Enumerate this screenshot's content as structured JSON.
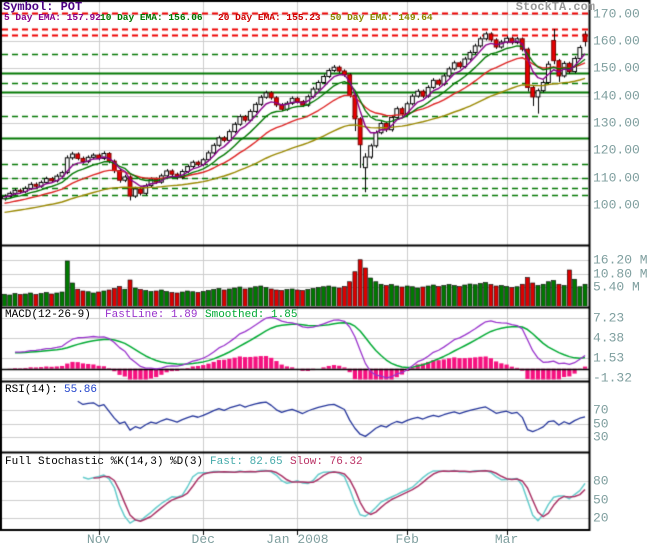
{
  "header": {
    "symbol_label": "Symbol: POT",
    "logo": "StockTA.com"
  },
  "legend": {
    "ema5": "5 Day EMA: 157.92",
    "ema10": "10 Day EMA: 156.06",
    "ema20": "20 Day EMA: 155.23",
    "ema50": "50 Day EMA: 149.64"
  },
  "panels": {
    "macd": {
      "title": "MACD(12-26-9)",
      "fast_label": "FastLine: 1.89",
      "smoothed_label": "Smoothed: 1.85"
    },
    "rsi": {
      "title": "RSI(14):",
      "value": "55.86"
    },
    "stochastic": {
      "title": "Full Stochastic %K(14,3) %D(3)",
      "fast_label": "Fast: 82.65",
      "slow_label": "Slow: 76.32"
    }
  },
  "axes": {
    "price_ticks": [
      {
        "label": "170.00",
        "value": 170
      },
      {
        "label": "160.00",
        "value": 160
      },
      {
        "label": "150.00",
        "value": 150
      },
      {
        "label": "140.00",
        "value": 140
      },
      {
        "label": "130.00",
        "value": 130
      },
      {
        "label": "120.00",
        "value": 120
      },
      {
        "label": "110.00",
        "value": 110
      },
      {
        "label": "100.00",
        "value": 100
      }
    ],
    "volume_ticks": [
      {
        "label": "16.20 M",
        "value": 16.2
      },
      {
        "label": "10.80 M",
        "value": 10.8
      },
      {
        "label": "5.40 M",
        "value": 5.4
      }
    ],
    "macd_ticks": [
      {
        "label": "7.23",
        "value": 7.23
      },
      {
        "label": "4.38",
        "value": 4.38
      },
      {
        "label": "1.53",
        "value": 1.53
      },
      {
        "label": "-1.32",
        "value": -1.32
      }
    ],
    "rsi_ticks": [
      {
        "label": "70",
        "value": 70
      },
      {
        "label": "50",
        "value": 50
      },
      {
        "label": "30",
        "value": 30
      }
    ],
    "stoch_ticks": [
      {
        "label": "80",
        "value": 80
      },
      {
        "label": "50",
        "value": 50
      },
      {
        "label": "20",
        "value": 20
      }
    ],
    "months": [
      {
        "label": "Nov",
        "day_index": 18
      },
      {
        "label": "Dec",
        "day_index": 38
      },
      {
        "label": "Jan 2008",
        "day_index": 56
      },
      {
        "label": "Feb",
        "day_index": 77
      },
      {
        "label": "Mar",
        "day_index": 96
      }
    ]
  },
  "colors": {
    "candle_up": "#ffffff",
    "candle_down": "#e80000",
    "candle_down_stroke": "#770000",
    "candle_outline": "#000000",
    "volume_up": "#007a00",
    "volume_down": "#dd0000",
    "ema5": "#880088",
    "ema10": "#007700",
    "ema20": "#dd2222",
    "ema50": "#998800",
    "sr_red_dashed": "#ee0000",
    "sr_green": "#007700",
    "macd_fast": "#9933cc",
    "macd_smoothed": "#00aa33",
    "macd_histogram": "#f5117f",
    "rsi_line": "#223399",
    "stoch_fast": "#66cccc",
    "stoch_slow": "#aa3366",
    "grid": "#cccccc",
    "frame": "#000000",
    "axis_text": "#7f9f9f",
    "symbol_text": "#4b0082",
    "logo_text": "#999999"
  },
  "chart_data": {
    "type": "candlestick",
    "symbol": "POT",
    "price_ylim": [
      85,
      175
    ],
    "x_months": [
      "Nov",
      "Dec",
      "Jan 2008",
      "Feb",
      "Mar"
    ],
    "indicators": {
      "ema_periods": [
        5,
        10,
        20,
        50
      ],
      "ema_values": {
        "ema5": 157.92,
        "ema10": 156.06,
        "ema20": 155.23,
        "ema50": 149.64
      },
      "macd": {
        "params": [
          12,
          26,
          9
        ],
        "fastline": 1.89,
        "smoothed": 1.85,
        "ticks": [
          7.23,
          4.38,
          1.53,
          -1.32
        ]
      },
      "rsi": {
        "period": 14,
        "value": 55.86,
        "ticks": [
          30,
          50,
          70
        ]
      },
      "stochastic": {
        "k": [
          14,
          3
        ],
        "d": 3,
        "fast": 82.65,
        "slow": 76.32,
        "ticks": [
          20,
          50,
          80
        ]
      }
    },
    "volume_ticks_m": [
      5.4,
      10.8,
      16.2
    ],
    "support_resistance": {
      "red_dashed": [
        170.1,
        164.3,
        162.2
      ],
      "green_solid": [
        148.2,
        141.2,
        124.4
      ],
      "green_dashed": [
        155.4,
        144.6,
        132.4,
        115.0,
        110.0,
        106.3,
        103.5
      ]
    },
    "ohlcv": [
      [
        102.2,
        103.8,
        101.5,
        103.0,
        2.5
      ],
      [
        103.0,
        104.9,
        102.4,
        104.2,
        2.2
      ],
      [
        104.2,
        106.0,
        103.6,
        105.3,
        2.8
      ],
      [
        105.3,
        106.0,
        104.1,
        104.8,
        2.4
      ],
      [
        104.8,
        106.8,
        104.2,
        106.0,
        2.6
      ],
      [
        106.0,
        108.3,
        105.4,
        107.5,
        3.0
      ],
      [
        107.5,
        108.2,
        106.1,
        106.8,
        2.4
      ],
      [
        106.8,
        108.9,
        106.2,
        108.2,
        2.8
      ],
      [
        108.2,
        110.3,
        107.6,
        109.6,
        3.2
      ],
      [
        109.6,
        110.2,
        108.1,
        108.8,
        2.6
      ],
      [
        108.8,
        111.3,
        108.2,
        110.5,
        3.0
      ],
      [
        110.5,
        112.5,
        109.9,
        111.8,
        3.4
      ],
      [
        111.8,
        118.1,
        111.2,
        117.2,
        15.8
      ],
      [
        117.2,
        119.4,
        116.5,
        118.6,
        7.0
      ],
      [
        118.6,
        119.2,
        116.3,
        117.0,
        4.5
      ],
      [
        117.0,
        117.7,
        115.1,
        115.8,
        3.8
      ],
      [
        115.8,
        118.1,
        115.2,
        117.4,
        3.5
      ],
      [
        117.4,
        118.9,
        116.7,
        118.2,
        3.0
      ],
      [
        118.2,
        118.8,
        116.3,
        117.0,
        3.4
      ],
      [
        117.0,
        119.6,
        116.4,
        118.8,
        3.8
      ],
      [
        118.8,
        119.3,
        115.2,
        116.0,
        4.2
      ],
      [
        116.0,
        116.6,
        111.6,
        112.5,
        4.8
      ],
      [
        112.5,
        113.1,
        108.1,
        109.0,
        5.6
      ],
      [
        109.0,
        111.0,
        108.3,
        110.2,
        4.5
      ],
      [
        110.2,
        110.8,
        101.6,
        103.2,
        8.2
      ],
      [
        103.2,
        106.6,
        102.5,
        105.8,
        5.0
      ],
      [
        105.8,
        106.5,
        103.4,
        104.2,
        4.4
      ],
      [
        104.2,
        107.8,
        103.5,
        107.0,
        4.0
      ],
      [
        107.0,
        110.1,
        106.4,
        109.4,
        3.6
      ],
      [
        109.4,
        110.0,
        107.6,
        108.3,
        3.8
      ],
      [
        108.3,
        111.4,
        107.7,
        110.6,
        4.2
      ],
      [
        110.6,
        113.1,
        110.0,
        112.4,
        3.6
      ],
      [
        112.4,
        113.0,
        110.5,
        111.2,
        3.2
      ],
      [
        111.2,
        111.8,
        109.3,
        110.0,
        3.0
      ],
      [
        110.0,
        113.0,
        109.4,
        112.2,
        3.4
      ],
      [
        112.2,
        114.8,
        111.6,
        114.0,
        3.8
      ],
      [
        114.0,
        116.3,
        113.4,
        115.6,
        3.5
      ],
      [
        115.6,
        116.2,
        114.1,
        114.8,
        3.2
      ],
      [
        114.8,
        117.2,
        114.1,
        116.5,
        3.6
      ],
      [
        116.5,
        119.8,
        115.9,
        119.0,
        4.0
      ],
      [
        119.0,
        122.6,
        118.4,
        121.8,
        4.4
      ],
      [
        121.8,
        125.3,
        121.2,
        124.5,
        4.8
      ],
      [
        124.5,
        125.2,
        122.9,
        123.6,
        4.2
      ],
      [
        123.6,
        127.6,
        123.0,
        126.8,
        4.6
      ],
      [
        126.8,
        130.3,
        126.2,
        129.5,
        5.0
      ],
      [
        129.5,
        133.1,
        128.9,
        132.3,
        5.4
      ],
      [
        132.3,
        132.9,
        130.2,
        131.0,
        4.6
      ],
      [
        131.0,
        135.0,
        130.4,
        134.2,
        5.0
      ],
      [
        134.2,
        137.6,
        133.6,
        136.8,
        5.5
      ],
      [
        136.8,
        140.2,
        136.2,
        139.4,
        5.8
      ],
      [
        139.4,
        141.8,
        138.8,
        141.0,
        5.2
      ],
      [
        141.0,
        141.6,
        138.5,
        139.2,
        4.6
      ],
      [
        139.2,
        139.8,
        135.8,
        136.6,
        4.2
      ],
      [
        136.6,
        137.3,
        134.3,
        135.0,
        4.0
      ],
      [
        135.0,
        138.0,
        134.4,
        137.2,
        4.4
      ],
      [
        137.2,
        139.7,
        136.6,
        139.0,
        4.6
      ],
      [
        139.0,
        139.6,
        137.1,
        137.8,
        4.2
      ],
      [
        137.8,
        138.4,
        135.8,
        136.5,
        4.0
      ],
      [
        136.5,
        140.4,
        135.9,
        139.6,
        4.4
      ],
      [
        139.6,
        143.2,
        139.0,
        142.4,
        4.8
      ],
      [
        142.4,
        145.6,
        141.8,
        144.8,
        5.2
      ],
      [
        144.8,
        147.8,
        144.2,
        147.0,
        5.5
      ],
      [
        147.0,
        150.0,
        146.4,
        149.2,
        5.8
      ],
      [
        149.2,
        151.2,
        148.6,
        150.4,
        5.4
      ],
      [
        150.4,
        151.0,
        148.3,
        149.0,
        5.0
      ],
      [
        149.0,
        149.6,
        146.9,
        147.6,
        5.6
      ],
      [
        147.6,
        148.2,
        139.3,
        140.2,
        7.5
      ],
      [
        140.2,
        140.8,
        127.0,
        131.5,
        11.5
      ],
      [
        131.5,
        132.1,
        113.5,
        122.0,
        16.3
      ],
      [
        113.6,
        118.9,
        104.6,
        117.5,
        13.0
      ],
      [
        117.5,
        122.4,
        116.8,
        121.6,
        9.0
      ],
      [
        121.6,
        127.2,
        120.9,
        126.4,
        7.5
      ],
      [
        126.4,
        130.6,
        125.8,
        129.8,
        6.5
      ],
      [
        129.8,
        130.4,
        126.7,
        127.5,
        6.0
      ],
      [
        127.5,
        132.8,
        126.8,
        132.0,
        6.4
      ],
      [
        132.0,
        136.0,
        131.4,
        135.2,
        5.8
      ],
      [
        135.2,
        135.9,
        132.6,
        133.4,
        5.4
      ],
      [
        133.4,
        137.8,
        132.7,
        137.0,
        5.8
      ],
      [
        137.0,
        140.6,
        136.4,
        139.8,
        5.5
      ],
      [
        139.8,
        142.4,
        139.2,
        141.6,
        5.0
      ],
      [
        141.6,
        142.2,
        139.1,
        139.8,
        5.4
      ],
      [
        139.8,
        143.8,
        139.2,
        143.0,
        5.8
      ],
      [
        143.0,
        146.4,
        142.4,
        145.6,
        6.2
      ],
      [
        145.6,
        146.2,
        143.5,
        144.2,
        5.6
      ],
      [
        144.2,
        148.0,
        143.6,
        147.2,
        6.0
      ],
      [
        147.2,
        150.6,
        146.6,
        149.8,
        6.4
      ],
      [
        149.8,
        152.8,
        149.2,
        152.0,
        6.0
      ],
      [
        152.0,
        152.6,
        149.9,
        150.6,
        5.6
      ],
      [
        150.6,
        154.2,
        150.0,
        153.4,
        6.2
      ],
      [
        153.4,
        156.6,
        152.8,
        155.8,
        6.6
      ],
      [
        155.8,
        159.0,
        155.2,
        158.2,
        6.3
      ],
      [
        158.2,
        161.6,
        157.6,
        160.8,
        6.8
      ],
      [
        160.8,
        163.4,
        160.2,
        162.6,
        7.2
      ],
      [
        162.6,
        163.2,
        159.7,
        160.4,
        6.4
      ],
      [
        160.4,
        161.0,
        157.1,
        157.8,
        5.8
      ],
      [
        157.8,
        160.4,
        157.2,
        159.6,
        6.0
      ],
      [
        159.6,
        161.8,
        159.0,
        161.0,
        5.6
      ],
      [
        161.0,
        161.6,
        158.7,
        159.4,
        5.2
      ],
      [
        159.4,
        161.5,
        158.8,
        160.8,
        5.5
      ],
      [
        160.8,
        161.3,
        156.2,
        157.0,
        6.5
      ],
      [
        157.0,
        157.6,
        141.5,
        143.0,
        9.2
      ],
      [
        143.0,
        143.6,
        136.2,
        139.5,
        7.0
      ],
      [
        139.5,
        142.6,
        133.4,
        141.8,
        6.0
      ],
      [
        141.8,
        145.6,
        141.2,
        144.8,
        6.5
      ],
      [
        144.8,
        152.6,
        144.1,
        151.5,
        7.5
      ],
      [
        160.2,
        164.4,
        151.5,
        152.8,
        8.0
      ],
      [
        152.8,
        153.4,
        145.0,
        147.2,
        6.5
      ],
      [
        147.2,
        152.6,
        146.6,
        151.8,
        6.0
      ],
      [
        151.8,
        152.4,
        148.0,
        148.8,
        12.2
      ],
      [
        148.8,
        154.4,
        148.2,
        153.6,
        8.5
      ],
      [
        153.6,
        158.4,
        153.0,
        157.6,
        5.5
      ],
      [
        162.5,
        163.6,
        158.0,
        159.8,
        6.5
      ]
    ]
  }
}
